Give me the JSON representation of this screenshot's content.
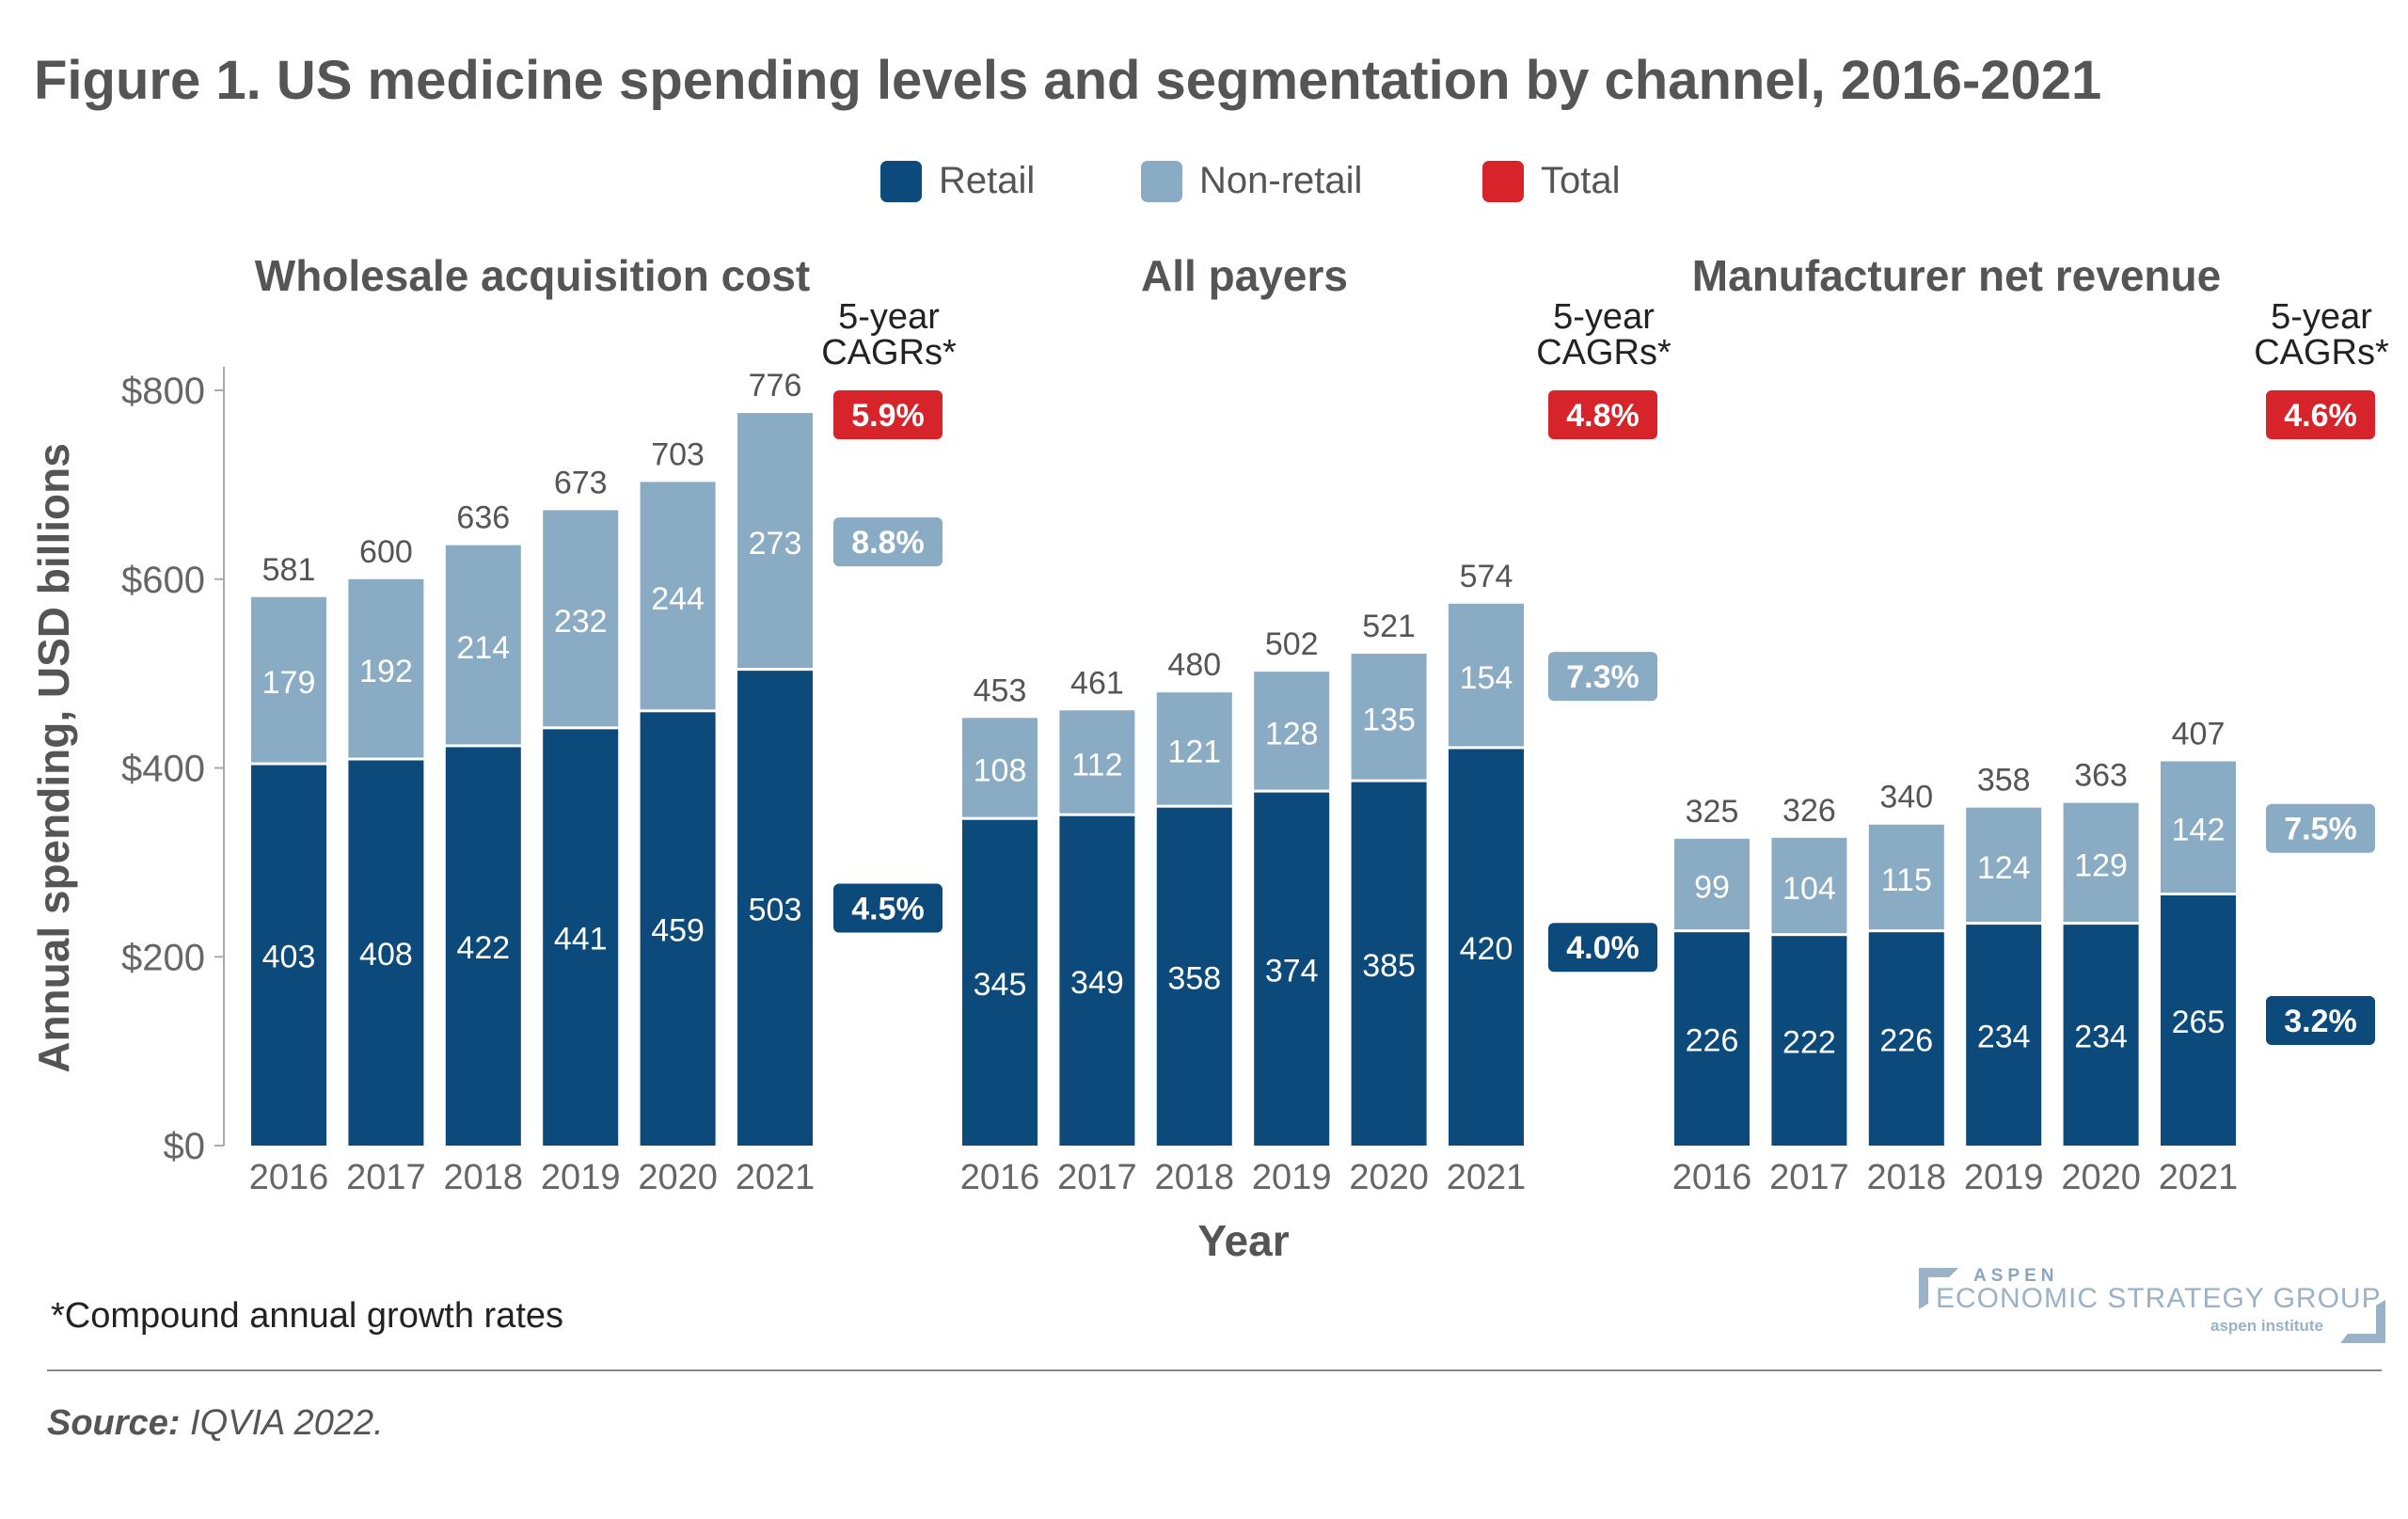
{
  "title": "Figure 1. US medicine spending levels and segmentation by channel, 2016-2021",
  "legend": [
    {
      "label": "Retail",
      "color": "#0b4a7a"
    },
    {
      "label": "Non-retail",
      "color": "#8aabc4"
    },
    {
      "label": "Total",
      "color": "#d7242b"
    }
  ],
  "cagr_header": [
    "5-year",
    "CAGRs*"
  ],
  "footnote": "*Compound annual growth rates",
  "source_label": "Source:",
  "source_text": " IQVIA 2022.",
  "logo": {
    "line1": "ASPEN",
    "line2": "ECONOMIC STRATEGY GROUP",
    "line3": "aspen institute"
  },
  "chart_data": {
    "type": "bar",
    "stacked": true,
    "ylabel": "Annual spending, USD billions",
    "xlabel": "Year",
    "ylim": [
      0,
      800
    ],
    "yticks": [
      "$0",
      "$200",
      "$400",
      "$600",
      "$800"
    ],
    "categories": [
      "2016",
      "2017",
      "2018",
      "2019",
      "2020",
      "2021"
    ],
    "panels": [
      {
        "title": "Wholesale acquisition cost",
        "retail": [
          403,
          408,
          422,
          441,
          459,
          503
        ],
        "non_retail": [
          179,
          192,
          214,
          232,
          244,
          273
        ],
        "total": [
          581,
          600,
          636,
          673,
          703,
          776
        ],
        "cagr": {
          "total": "5.9%",
          "non_retail": "8.8%",
          "retail": "4.5%"
        }
      },
      {
        "title": "All payers",
        "retail": [
          345,
          349,
          358,
          374,
          385,
          420
        ],
        "non_retail": [
          108,
          112,
          121,
          128,
          135,
          154
        ],
        "total": [
          453,
          461,
          480,
          502,
          521,
          574
        ],
        "cagr": {
          "total": "4.8%",
          "non_retail": "7.3%",
          "retail": "4.0%"
        }
      },
      {
        "title": "Manufacturer net revenue",
        "retail": [
          226,
          222,
          226,
          234,
          234,
          265
        ],
        "non_retail": [
          99,
          104,
          115,
          124,
          129,
          142
        ],
        "total": [
          325,
          326,
          340,
          358,
          363,
          407
        ],
        "cagr": {
          "total": "4.6%",
          "non_retail": "7.5%",
          "retail": "3.2%"
        }
      }
    ]
  }
}
